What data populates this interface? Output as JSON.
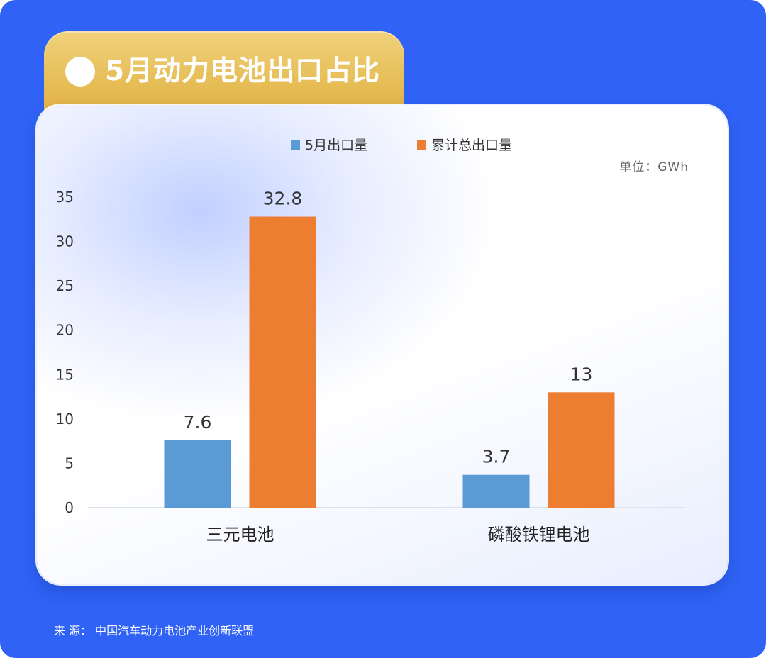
{
  "title": "5月动力电池出口占比",
  "unit_label": "单位：GWh",
  "source": "来 源：  中国汽车动力电池产业创新联盟",
  "colors": {
    "background": "#2f62f5",
    "series_may": "#5b9bd5",
    "series_cumulative": "#ed7d31",
    "title_tab": "#e4b84e"
  },
  "chart_data": {
    "type": "bar",
    "title": "5月动力电池出口占比",
    "categories": [
      "三元电池",
      "磷酸铁锂电池"
    ],
    "series": [
      {
        "name": "5月出口量",
        "values": [
          7.6,
          3.7
        ],
        "color": "#5b9bd5"
      },
      {
        "name": "累计总出口量",
        "values": [
          32.8,
          13
        ],
        "color": "#ed7d31"
      }
    ],
    "ylim": [
      0,
      35
    ],
    "yticks": [
      0,
      5,
      10,
      15,
      20,
      25,
      30,
      35
    ],
    "xlabel": "",
    "ylabel": "",
    "grid": false,
    "legend": "top-center",
    "unit": "GWh"
  }
}
